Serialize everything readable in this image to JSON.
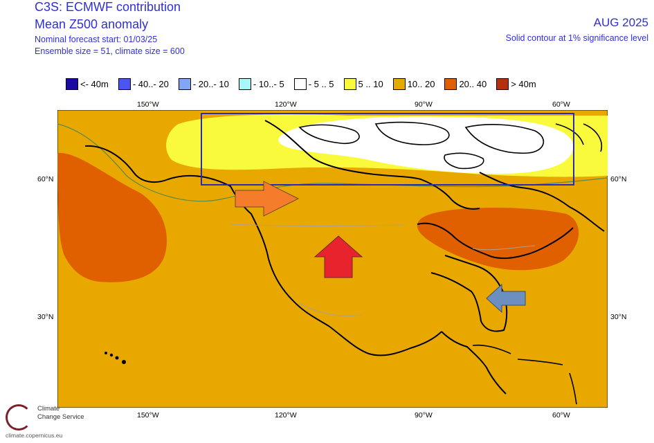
{
  "header": {
    "title_line1": "C3S: ECMWF contribution",
    "title_line2": "Mean Z500 anomaly",
    "forecast_start": "Nominal forecast start: 01/03/25",
    "ensemble": "Ensemble size = 51, climate size = 600",
    "month": "AUG 2025",
    "significance": "Solid contour at 1% significance level"
  },
  "legend": [
    {
      "label": "<- 40m",
      "color": "#1a0aa3"
    },
    {
      "label": "- 40..- 20",
      "color": "#4a55f2"
    },
    {
      "label": "- 20..- 10",
      "color": "#80a6f5"
    },
    {
      "label": "- 10..- 5",
      "color": "#a8f7f9"
    },
    {
      "label": "- 5 .. 5",
      "color": "#ffffff"
    },
    {
      "label": "5 .. 10",
      "color": "#fafa3c"
    },
    {
      "label": "10.. 20",
      "color": "#e8a800"
    },
    {
      "label": "20.. 40",
      "color": "#e06000"
    },
    {
      "label": "> 40m",
      "color": "#b53010"
    }
  ],
  "axes": {
    "lon_top": [
      "150°W",
      "120°W",
      "90°W",
      "60°W"
    ],
    "lon_bottom": [
      "150°W",
      "120°W",
      "90°W",
      "60°W"
    ],
    "lat_left": [
      "60°N",
      "30°N"
    ],
    "lat_right": [
      "60°N",
      "30°N"
    ]
  },
  "logo": {
    "line1": "Climate",
    "line2": "Change Service",
    "url": "climate.copernicus.eu"
  },
  "colors": {
    "background_anomaly": "#e8a800",
    "box_outline": "#2a2ab5",
    "arrow_orange": "#f47c2a",
    "arrow_red": "#e8232d",
    "arrow_blue": "#6d8fbf"
  }
}
